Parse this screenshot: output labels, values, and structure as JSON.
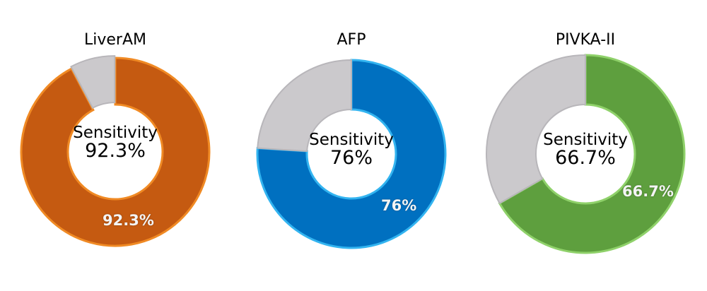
{
  "chart_data": [
    {
      "type": "pie",
      "variant": "donut",
      "title": "LiverAM",
      "center_text": [
        "Sensitivity",
        "92.3%"
      ],
      "slices": [
        {
          "label": "Sensitivity",
          "value": 92.3,
          "color": "#c55a11",
          "data_label": "92.3%"
        },
        {
          "label": "Remaining",
          "value": 7.7,
          "color": "#cbc9cc"
        }
      ]
    },
    {
      "type": "pie",
      "variant": "donut",
      "title": "AFP",
      "center_text": [
        "Sensitivity",
        "76%"
      ],
      "slices": [
        {
          "label": "Sensitivity",
          "value": 76,
          "color": "#0070c0",
          "data_label": "76%"
        },
        {
          "label": "Remaining",
          "value": 24,
          "color": "#cbc9cc"
        }
      ]
    },
    {
      "type": "pie",
      "variant": "donut",
      "title": "PIVKA-II",
      "center_text": [
        "Sensitivity",
        "66.7%"
      ],
      "slices": [
        {
          "label": "Sensitivity",
          "value": 66.7,
          "color": "#5e9f3e",
          "data_label": "66.7%"
        },
        {
          "label": "Remaining",
          "value": 33.3,
          "color": "#cbc9cc"
        }
      ]
    }
  ],
  "charts": [
    {
      "title": "LiverAM",
      "center_line1": "Sensitivity",
      "center_line2": "92.3%",
      "data_label": "92.3%"
    },
    {
      "title": "AFP",
      "center_line1": "Sensitivity",
      "center_line2": "76%",
      "data_label": "76%"
    },
    {
      "title": "PIVKA-II",
      "center_line1": "Sensitivity",
      "center_line2": "66.7%",
      "data_label": "66.7%"
    }
  ],
  "colors": {
    "liveram": "#c55a11",
    "liveram_edge": "#f08a24",
    "afp": "#0070c0",
    "afp_edge": "#33b4f0",
    "pivka": "#5e9f3e",
    "pivka_edge": "#8fd16a",
    "remaining": "#cbc9cc"
  }
}
